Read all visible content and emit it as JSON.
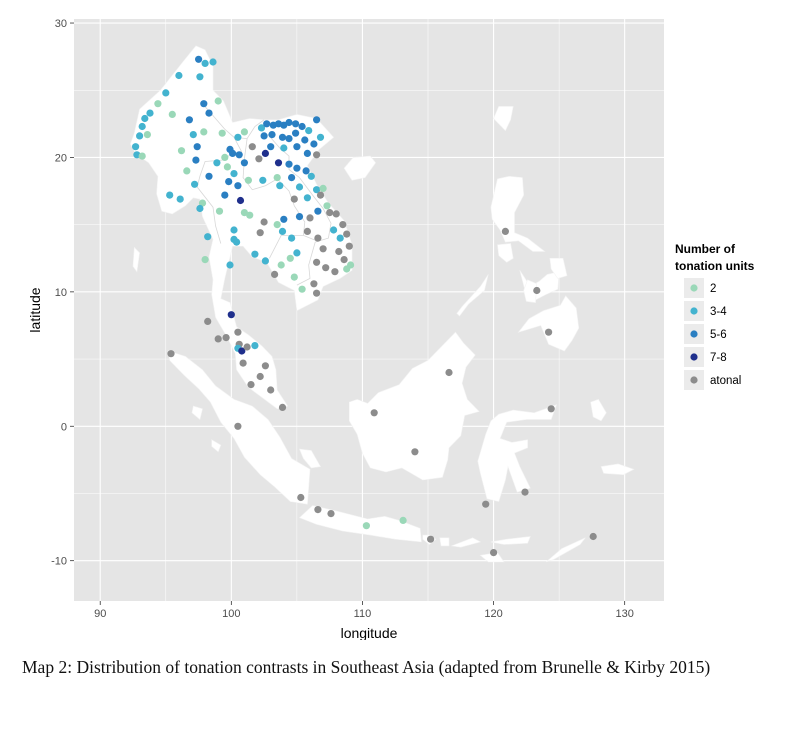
{
  "map": {
    "xlabel": "longitude",
    "ylabel": "latitude",
    "xlim": [
      88,
      133
    ],
    "ylim": [
      -13,
      30.3
    ],
    "x_ticks": [
      90,
      100,
      110,
      120,
      130
    ],
    "y_ticks": [
      30,
      20,
      10,
      0,
      -10
    ],
    "panel_color": "#e5e5e5",
    "grid_color": "#ffffff",
    "land_color": "#ffffff"
  },
  "legend": {
    "title_line1": "Number of",
    "title_line2": "tonation units",
    "items": [
      {
        "label": "2",
        "color": "#9ad8b8"
      },
      {
        "label": "3-4",
        "color": "#43b3cf"
      },
      {
        "label": "5-6",
        "color": "#2a7fc2"
      },
      {
        "label": "7-8",
        "color": "#1f2f8c"
      },
      {
        "label": "atonal",
        "color": "#8c8c8c"
      }
    ]
  },
  "caption": {
    "text": "Map 2:  Distribution of tonation contrasts in Southeast Asia (adapted from Brunelle & Kirby 2015)"
  },
  "points": [
    {
      "lon": 92.7,
      "lat": 20.8,
      "c": "3-4"
    },
    {
      "lon": 93.0,
      "lat": 21.6,
      "c": "3-4"
    },
    {
      "lon": 93.2,
      "lat": 22.3,
      "c": "3-4"
    },
    {
      "lon": 93.4,
      "lat": 22.9,
      "c": "3-4"
    },
    {
      "lon": 93.6,
      "lat": 21.7,
      "c": "2"
    },
    {
      "lon": 93.8,
      "lat": 23.3,
      "c": "3-4"
    },
    {
      "lon": 94.4,
      "lat": 24.0,
      "c": "2"
    },
    {
      "lon": 95.0,
      "lat": 24.8,
      "c": "3-4"
    },
    {
      "lon": 95.5,
      "lat": 23.2,
      "c": "2"
    },
    {
      "lon": 96.0,
      "lat": 26.1,
      "c": "3-4"
    },
    {
      "lon": 96.8,
      "lat": 22.8,
      "c": "5-6"
    },
    {
      "lon": 97.1,
      "lat": 21.7,
      "c": "3-4"
    },
    {
      "lon": 97.6,
      "lat": 26.0,
      "c": "3-4"
    },
    {
      "lon": 97.5,
      "lat": 27.3,
      "c": "5-6"
    },
    {
      "lon": 98.0,
      "lat": 27.0,
      "c": "3-4"
    },
    {
      "lon": 98.6,
      "lat": 27.1,
      "c": "3-4"
    },
    {
      "lon": 97.9,
      "lat": 24.0,
      "c": "5-6"
    },
    {
      "lon": 98.3,
      "lat": 23.3,
      "c": "5-6"
    },
    {
      "lon": 99.0,
      "lat": 24.2,
      "c": "2"
    },
    {
      "lon": 92.8,
      "lat": 20.2,
      "c": "3-4"
    },
    {
      "lon": 93.2,
      "lat": 20.1,
      "c": "2"
    },
    {
      "lon": 96.2,
      "lat": 20.5,
      "c": "2"
    },
    {
      "lon": 96.6,
      "lat": 19.0,
      "c": "2"
    },
    {
      "lon": 97.4,
      "lat": 20.8,
      "c": "5-6"
    },
    {
      "lon": 97.3,
      "lat": 19.8,
      "c": "5-6"
    },
    {
      "lon": 97.9,
      "lat": 21.9,
      "c": "2"
    },
    {
      "lon": 98.3,
      "lat": 18.6,
      "c": "5-6"
    },
    {
      "lon": 97.2,
      "lat": 18.0,
      "c": "3-4"
    },
    {
      "lon": 97.8,
      "lat": 16.6,
      "c": "2"
    },
    {
      "lon": 95.3,
      "lat": 17.2,
      "c": "3-4"
    },
    {
      "lon": 96.1,
      "lat": 16.9,
      "c": "3-4"
    },
    {
      "lon": 97.6,
      "lat": 16.2,
      "c": "3-4"
    },
    {
      "lon": 98.2,
      "lat": 14.1,
      "c": "3-4"
    },
    {
      "lon": 98.0,
      "lat": 12.4,
      "c": "2"
    },
    {
      "lon": 98.9,
      "lat": 19.6,
      "c": "3-4"
    },
    {
      "lon": 99.3,
      "lat": 21.8,
      "c": "2"
    },
    {
      "lon": 99.5,
      "lat": 20.0,
      "c": "2"
    },
    {
      "lon": 99.7,
      "lat": 19.3,
      "c": "2"
    },
    {
      "lon": 99.9,
      "lat": 20.6,
      "c": "5-6"
    },
    {
      "lon": 100.1,
      "lat": 20.3,
      "c": "5-6"
    },
    {
      "lon": 100.5,
      "lat": 21.5,
      "c": "3-4"
    },
    {
      "lon": 101.0,
      "lat": 21.9,
      "c": "2"
    },
    {
      "lon": 100.6,
      "lat": 20.2,
      "c": "5-6"
    },
    {
      "lon": 99.8,
      "lat": 18.2,
      "c": "5-6"
    },
    {
      "lon": 100.2,
      "lat": 18.8,
      "c": "3-4"
    },
    {
      "lon": 100.5,
      "lat": 17.9,
      "c": "5-6"
    },
    {
      "lon": 101.0,
      "lat": 19.6,
      "c": "5-6"
    },
    {
      "lon": 101.6,
      "lat": 20.8,
      "c": "atonal"
    },
    {
      "lon": 101.3,
      "lat": 18.3,
      "c": "2"
    },
    {
      "lon": 99.5,
      "lat": 17.2,
      "c": "5-6"
    },
    {
      "lon": 100.2,
      "lat": 14.6,
      "c": "3-4"
    },
    {
      "lon": 100.7,
      "lat": 16.8,
      "c": "7-8"
    },
    {
      "lon": 101.8,
      "lat": 12.8,
      "c": "3-4"
    },
    {
      "lon": 101.0,
      "lat": 15.9,
      "c": "2"
    },
    {
      "lon": 99.1,
      "lat": 16.0,
      "c": "2"
    },
    {
      "lon": 100.4,
      "lat": 13.7,
      "c": "3-4"
    },
    {
      "lon": 102.1,
      "lat": 19.9,
      "c": "atonal"
    },
    {
      "lon": 102.6,
      "lat": 20.3,
      "c": "7-8"
    },
    {
      "lon": 102.5,
      "lat": 21.6,
      "c": "5-6"
    },
    {
      "lon": 102.3,
      "lat": 22.2,
      "c": "3-4"
    },
    {
      "lon": 102.7,
      "lat": 22.5,
      "c": "5-6"
    },
    {
      "lon": 103.2,
      "lat": 22.4,
      "c": "5-6"
    },
    {
      "lon": 103.6,
      "lat": 22.5,
      "c": "5-6"
    },
    {
      "lon": 104.0,
      "lat": 22.4,
      "c": "5-6"
    },
    {
      "lon": 104.4,
      "lat": 22.6,
      "c": "5-6"
    },
    {
      "lon": 104.9,
      "lat": 22.5,
      "c": "5-6"
    },
    {
      "lon": 105.4,
      "lat": 22.3,
      "c": "5-6"
    },
    {
      "lon": 105.9,
      "lat": 22.0,
      "c": "3-4"
    },
    {
      "lon": 106.5,
      "lat": 22.8,
      "c": "5-6"
    },
    {
      "lon": 103.1,
      "lat": 21.7,
      "c": "5-6"
    },
    {
      "lon": 103.9,
      "lat": 21.5,
      "c": "5-6"
    },
    {
      "lon": 104.4,
      "lat": 21.4,
      "c": "5-6"
    },
    {
      "lon": 104.9,
      "lat": 21.8,
      "c": "5-6"
    },
    {
      "lon": 105.6,
      "lat": 21.3,
      "c": "5-6"
    },
    {
      "lon": 106.3,
      "lat": 21.0,
      "c": "5-6"
    },
    {
      "lon": 106.8,
      "lat": 21.5,
      "c": "3-4"
    },
    {
      "lon": 103.0,
      "lat": 20.8,
      "c": "5-6"
    },
    {
      "lon": 104.0,
      "lat": 20.7,
      "c": "3-4"
    },
    {
      "lon": 105.0,
      "lat": 20.8,
      "c": "5-6"
    },
    {
      "lon": 105.8,
      "lat": 20.3,
      "c": "5-6"
    },
    {
      "lon": 106.5,
      "lat": 20.2,
      "c": "atonal"
    },
    {
      "lon": 103.6,
      "lat": 19.6,
      "c": "7-8"
    },
    {
      "lon": 104.4,
      "lat": 19.5,
      "c": "5-6"
    },
    {
      "lon": 105.0,
      "lat": 19.2,
      "c": "5-6"
    },
    {
      "lon": 105.7,
      "lat": 19.0,
      "c": "5-6"
    },
    {
      "lon": 106.1,
      "lat": 18.6,
      "c": "3-4"
    },
    {
      "lon": 102.4,
      "lat": 18.3,
      "c": "3-4"
    },
    {
      "lon": 103.5,
      "lat": 18.5,
      "c": "2"
    },
    {
      "lon": 104.6,
      "lat": 18.5,
      "c": "5-6"
    },
    {
      "lon": 105.2,
      "lat": 17.8,
      "c": "3-4"
    },
    {
      "lon": 106.5,
      "lat": 17.6,
      "c": "3-4"
    },
    {
      "lon": 107.0,
      "lat": 17.7,
      "c": "2"
    },
    {
      "lon": 106.8,
      "lat": 17.2,
      "c": "atonal"
    },
    {
      "lon": 103.7,
      "lat": 17.9,
      "c": "3-4"
    },
    {
      "lon": 104.8,
      "lat": 16.9,
      "c": "atonal"
    },
    {
      "lon": 105.8,
      "lat": 17.0,
      "c": "3-4"
    },
    {
      "lon": 107.3,
      "lat": 16.4,
      "c": "2"
    },
    {
      "lon": 107.5,
      "lat": 15.9,
      "c": "atonal"
    },
    {
      "lon": 108.0,
      "lat": 15.8,
      "c": "atonal"
    },
    {
      "lon": 106.6,
      "lat": 16.0,
      "c": "5-6"
    },
    {
      "lon": 106.0,
      "lat": 15.5,
      "c": "atonal"
    },
    {
      "lon": 105.2,
      "lat": 15.6,
      "c": "5-6"
    },
    {
      "lon": 104.0,
      "lat": 15.4,
      "c": "5-6"
    },
    {
      "lon": 103.5,
      "lat": 15.0,
      "c": "2"
    },
    {
      "lon": 103.9,
      "lat": 14.5,
      "c": "3-4"
    },
    {
      "lon": 102.5,
      "lat": 15.2,
      "c": "atonal"
    },
    {
      "lon": 101.4,
      "lat": 15.7,
      "c": "2"
    },
    {
      "lon": 102.2,
      "lat": 14.4,
      "c": "atonal"
    },
    {
      "lon": 104.6,
      "lat": 14.0,
      "c": "3-4"
    },
    {
      "lon": 105.8,
      "lat": 14.5,
      "c": "atonal"
    },
    {
      "lon": 106.6,
      "lat": 14.0,
      "c": "atonal"
    },
    {
      "lon": 107.0,
      "lat": 13.2,
      "c": "atonal"
    },
    {
      "lon": 108.5,
      "lat": 15.0,
      "c": "atonal"
    },
    {
      "lon": 108.8,
      "lat": 14.3,
      "c": "atonal"
    },
    {
      "lon": 109.0,
      "lat": 13.4,
      "c": "atonal"
    },
    {
      "lon": 108.2,
      "lat": 13.0,
      "c": "atonal"
    },
    {
      "lon": 108.6,
      "lat": 12.4,
      "c": "atonal"
    },
    {
      "lon": 109.1,
      "lat": 12.0,
      "c": "2"
    },
    {
      "lon": 108.8,
      "lat": 11.7,
      "c": "2"
    },
    {
      "lon": 107.9,
      "lat": 11.5,
      "c": "atonal"
    },
    {
      "lon": 107.2,
      "lat": 11.8,
      "c": "atonal"
    },
    {
      "lon": 106.5,
      "lat": 12.2,
      "c": "atonal"
    },
    {
      "lon": 106.3,
      "lat": 10.6,
      "c": "atonal"
    },
    {
      "lon": 107.8,
      "lat": 14.6,
      "c": "3-4"
    },
    {
      "lon": 108.3,
      "lat": 14.0,
      "c": "3-4"
    },
    {
      "lon": 104.5,
      "lat": 12.5,
      "c": "2"
    },
    {
      "lon": 103.8,
      "lat": 12.0,
      "c": "2"
    },
    {
      "lon": 103.3,
      "lat": 11.3,
      "c": "atonal"
    },
    {
      "lon": 104.8,
      "lat": 11.1,
      "c": "2"
    },
    {
      "lon": 105.4,
      "lat": 10.2,
      "c": "2"
    },
    {
      "lon": 106.5,
      "lat": 9.9,
      "c": "atonal"
    },
    {
      "lon": 105.0,
      "lat": 12.9,
      "c": "3-4"
    },
    {
      "lon": 102.6,
      "lat": 12.3,
      "c": "3-4"
    },
    {
      "lon": 100.2,
      "lat": 13.9,
      "c": "3-4"
    },
    {
      "lon": 99.9,
      "lat": 12.0,
      "c": "3-4"
    },
    {
      "lon": 100.0,
      "lat": 8.3,
      "c": "7-8"
    },
    {
      "lon": 100.5,
      "lat": 7.0,
      "c": "atonal"
    },
    {
      "lon": 99.6,
      "lat": 6.6,
      "c": "atonal"
    },
    {
      "lon": 100.6,
      "lat": 6.1,
      "c": "atonal"
    },
    {
      "lon": 100.5,
      "lat": 5.8,
      "c": "3-4"
    },
    {
      "lon": 100.8,
      "lat": 5.6,
      "c": "7-8"
    },
    {
      "lon": 101.2,
      "lat": 5.9,
      "c": "atonal"
    },
    {
      "lon": 101.8,
      "lat": 6.0,
      "c": "3-4"
    },
    {
      "lon": 100.9,
      "lat": 4.7,
      "c": "atonal"
    },
    {
      "lon": 101.5,
      "lat": 3.1,
      "c": "atonal"
    },
    {
      "lon": 102.2,
      "lat": 3.7,
      "c": "atonal"
    },
    {
      "lon": 103.0,
      "lat": 2.7,
      "c": "atonal"
    },
    {
      "lon": 102.6,
      "lat": 4.5,
      "c": "atonal"
    },
    {
      "lon": 98.2,
      "lat": 7.8,
      "c": "atonal"
    },
    {
      "lon": 99.0,
      "lat": 6.5,
      "c": "atonal"
    },
    {
      "lon": 95.4,
      "lat": 5.4,
      "c": "atonal"
    },
    {
      "lon": 103.9,
      "lat": 1.4,
      "c": "atonal"
    },
    {
      "lon": 100.5,
      "lat": 0.0,
      "c": "atonal"
    },
    {
      "lon": 105.3,
      "lat": -5.3,
      "c": "atonal"
    },
    {
      "lon": 106.6,
      "lat": -6.2,
      "c": "atonal"
    },
    {
      "lon": 107.6,
      "lat": -6.5,
      "c": "atonal"
    },
    {
      "lon": 110.3,
      "lat": -7.4,
      "c": "2"
    },
    {
      "lon": 113.1,
      "lat": -7.0,
      "c": "2"
    },
    {
      "lon": 115.2,
      "lat": -8.4,
      "c": "atonal"
    },
    {
      "lon": 110.9,
      "lat": 1.0,
      "c": "atonal"
    },
    {
      "lon": 114.0,
      "lat": -1.9,
      "c": "atonal"
    },
    {
      "lon": 116.6,
      "lat": 4.0,
      "c": "atonal"
    },
    {
      "lon": 119.4,
      "lat": -5.8,
      "c": "atonal"
    },
    {
      "lon": 120.0,
      "lat": -9.4,
      "c": "atonal"
    },
    {
      "lon": 122.4,
      "lat": -4.9,
      "c": "atonal"
    },
    {
      "lon": 124.4,
      "lat": 1.3,
      "c": "atonal"
    },
    {
      "lon": 127.6,
      "lat": -8.2,
      "c": "atonal"
    },
    {
      "lon": 120.9,
      "lat": 14.5,
      "c": "atonal"
    },
    {
      "lon": 123.3,
      "lat": 10.1,
      "c": "atonal"
    },
    {
      "lon": 124.2,
      "lat": 7.0,
      "c": "atonal"
    }
  ]
}
